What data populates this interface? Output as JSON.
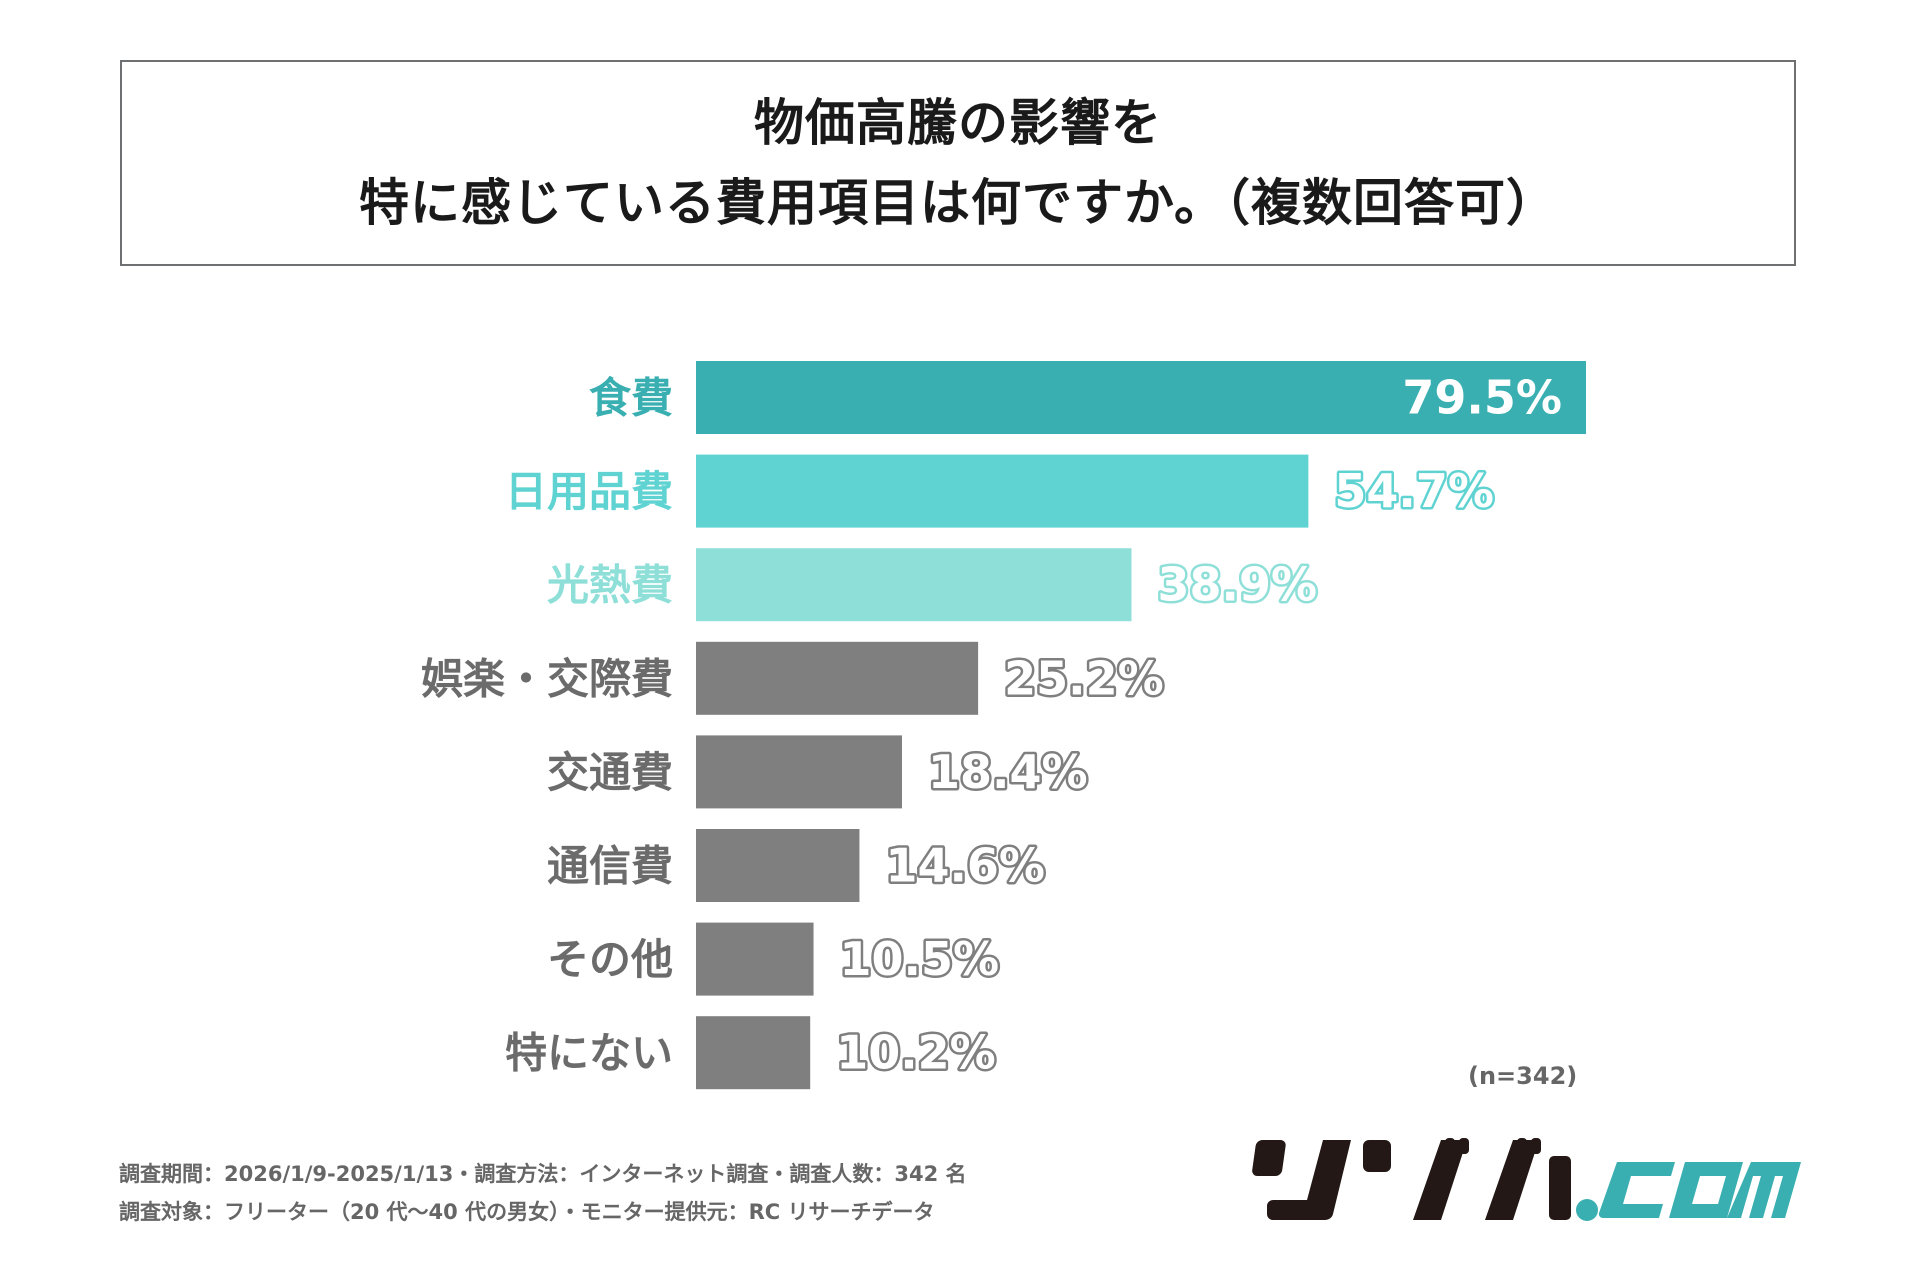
{
  "title": {
    "line1": "物価高騰の影響を",
    "line2": "特に感じている費用項目は何ですか。（複数回答可）"
  },
  "chart_data": {
    "type": "bar",
    "orientation": "horizontal",
    "categories": [
      "食費",
      "日用品費",
      "光熱費",
      "娯楽・交際費",
      "交通費",
      "通信費",
      "その他",
      "特にない"
    ],
    "values": [
      79.5,
      54.7,
      38.9,
      25.2,
      18.4,
      14.6,
      10.5,
      10.2
    ],
    "value_labels": [
      "79.5%",
      "54.7%",
      "38.9%",
      "25.2%",
      "18.4%",
      "14.6%",
      "10.5%",
      "10.2%"
    ],
    "colors": [
      "#3aafb1",
      "#5fd3d2",
      "#8fdfd9",
      "#7f7f7f",
      "#7f7f7f",
      "#7f7f7f",
      "#7f7f7f",
      "#7f7f7f"
    ],
    "label_colors": [
      "#3aafb1",
      "#5fd3d2",
      "#8fdfd9",
      "#6b6b6b",
      "#6b6b6b",
      "#6b6b6b",
      "#6b6b6b",
      "#6b6b6b"
    ],
    "unit": "%",
    "xlim": [
      0,
      100
    ],
    "grid": false,
    "legend": "none"
  },
  "sample_size": "(n=342)",
  "footer": {
    "line1": "調査期間：2026/1/9-2025/1/13・調査方法：インターネット調査・調査人数：342 名",
    "line2": "調査対象：フリーター（20 代〜40 代の男女）・モニター提供元：RC リサーチデータ"
  },
  "logo": {
    "text": "リゾバ.com",
    "colors": {
      "kana": "#231815",
      "com": "#3aafb1"
    }
  }
}
